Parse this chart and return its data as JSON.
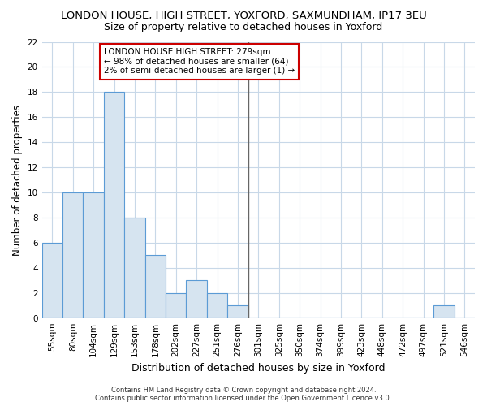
{
  "title": "LONDON HOUSE, HIGH STREET, YOXFORD, SAXMUNDHAM, IP17 3EU",
  "subtitle": "Size of property relative to detached houses in Yoxford",
  "xlabel": "Distribution of detached houses by size in Yoxford",
  "ylabel": "Number of detached properties",
  "categories": [
    "55sqm",
    "80sqm",
    "104sqm",
    "129sqm",
    "153sqm",
    "178sqm",
    "202sqm",
    "227sqm",
    "251sqm",
    "276sqm",
    "301sqm",
    "325sqm",
    "350sqm",
    "374sqm",
    "399sqm",
    "423sqm",
    "448sqm",
    "472sqm",
    "497sqm",
    "521sqm",
    "546sqm"
  ],
  "values": [
    6,
    10,
    10,
    18,
    8,
    5,
    2,
    3,
    2,
    1,
    0,
    0,
    0,
    0,
    0,
    0,
    0,
    0,
    0,
    1,
    0
  ],
  "bar_color": "#d6e4f0",
  "bar_edge_color": "#5b9bd5",
  "highlight_index": 9,
  "highlight_line_color": "#666666",
  "ylim": [
    0,
    22
  ],
  "yticks": [
    0,
    2,
    4,
    6,
    8,
    10,
    12,
    14,
    16,
    18,
    20,
    22
  ],
  "annotation_text": "LONDON HOUSE HIGH STREET: 279sqm\n← 98% of detached houses are smaller (64)\n2% of semi-detached houses are larger (1) →",
  "annotation_box_facecolor": "#ffffff",
  "annotation_box_edgecolor": "#cc0000",
  "footer_line1": "Contains HM Land Registry data © Crown copyright and database right 2024.",
  "footer_line2": "Contains public sector information licensed under the Open Government Licence v3.0.",
  "background_color": "#ffffff",
  "grid_color": "#c8d8e8",
  "title_fontsize": 9.5,
  "subtitle_fontsize": 9,
  "tick_fontsize": 7.5,
  "ylabel_fontsize": 8.5,
  "xlabel_fontsize": 9
}
